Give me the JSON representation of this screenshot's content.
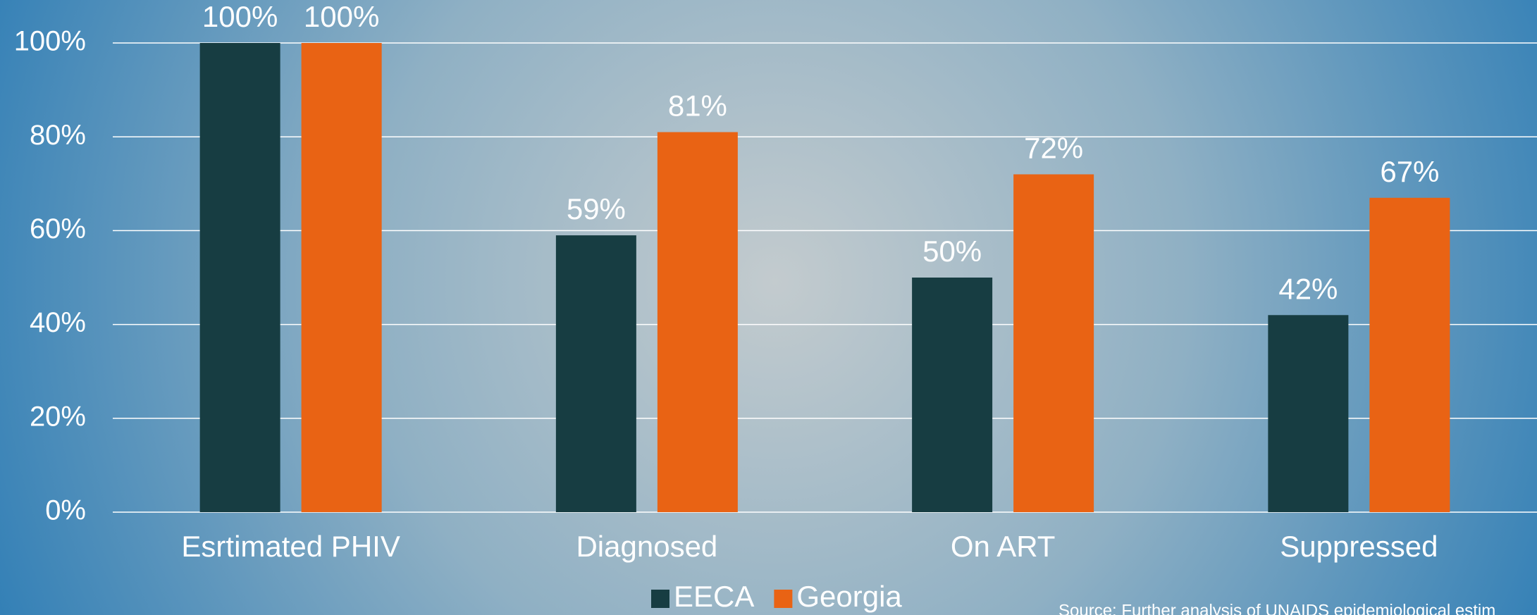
{
  "chart_data": {
    "type": "bar",
    "categories": [
      "Esrtimated PHIV",
      "Diagnosed",
      "On ART",
      "Suppressed"
    ],
    "series": [
      {
        "name": "EECA",
        "color": "#173d42",
        "values": [
          100,
          59,
          50,
          42
        ],
        "value_labels": [
          "100%",
          "59%",
          "50%",
          "42%"
        ]
      },
      {
        "name": "Georgia",
        "color": "#e96314",
        "values": [
          100,
          81,
          72,
          67
        ],
        "value_labels": [
          "100%",
          "81%",
          "72%",
          "67%"
        ]
      }
    ],
    "ylim": [
      0,
      100
    ],
    "yticks": [
      {
        "value": 0,
        "label": "0%"
      },
      {
        "value": 20,
        "label": "20%"
      },
      {
        "value": 40,
        "label": "40%"
      },
      {
        "value": 60,
        "label": "60%"
      },
      {
        "value": 80,
        "label": "80%"
      },
      {
        "value": 100,
        "label": "100%"
      }
    ],
    "grid": true,
    "legend": "bottom",
    "source": "Source: Further analysis of UNAIDS epidemiological estim"
  }
}
